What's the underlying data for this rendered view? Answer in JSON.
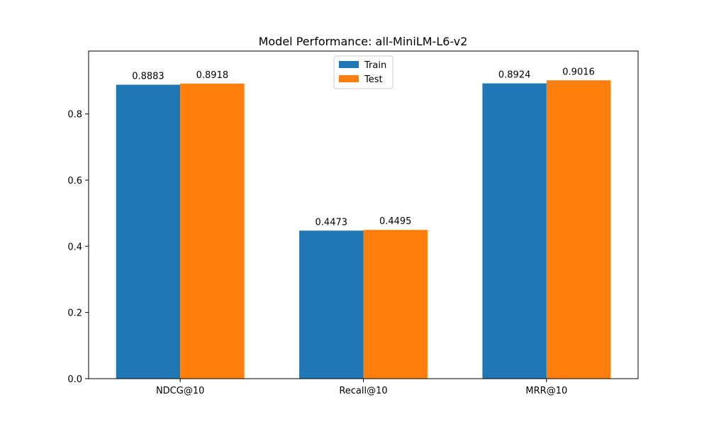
{
  "chart_data": {
    "type": "bar",
    "title": "Model Performance: all-MiniLM-L6-v2",
    "xlabel": "",
    "ylabel": "",
    "categories": [
      "NDCG@10",
      "Recall@10",
      "MRR@10"
    ],
    "series": [
      {
        "name": "Train",
        "values": [
          0.8883,
          0.4473,
          0.8924
        ],
        "labels": [
          "0.8883",
          "0.4473",
          "0.8924"
        ],
        "color": "#1f77b4"
      },
      {
        "name": "Test",
        "values": [
          0.8918,
          0.4495,
          0.9016
        ],
        "labels": [
          "0.8918",
          "0.4495",
          "0.9016"
        ],
        "color": "#ff7f0e"
      }
    ],
    "ylim": [
      0,
      0.99
    ],
    "yticks": [
      0.0,
      0.2,
      0.4,
      0.6,
      0.8
    ],
    "ytick_labels": [
      "0.0",
      "0.2",
      "0.4",
      "0.6",
      "0.8"
    ],
    "grid": false,
    "legend_position": "top-center"
  }
}
